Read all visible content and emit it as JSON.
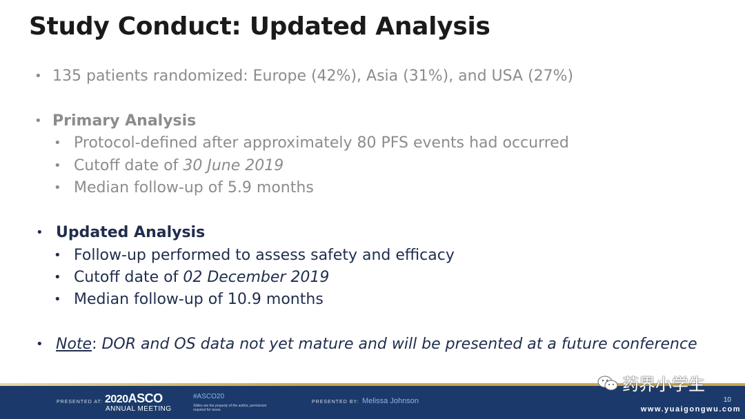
{
  "slide": {
    "title": "Study Conduct: Updated Analysis",
    "bullet_glyph": "•",
    "bullets": {
      "patients": "135 patients randomized: Europe (42%), Asia (31%), and USA (27%)",
      "primary": {
        "heading": "Primary Analysis",
        "protocol": "Protocol-defined after approximately 80 PFS events had occurred",
        "cutoff_prefix": "Cutoff date of ",
        "cutoff_date": "30 June 2019",
        "followup": "Median follow-up of 5.9 months"
      },
      "updated": {
        "heading": "Updated Analysis",
        "followup_performed": "Follow-up performed to assess safety and efficacy",
        "cutoff_prefix": "Cutoff date of ",
        "cutoff_date": "02 December 2019",
        "followup": "Median follow-up of 10.9 months"
      },
      "note": {
        "label": "Note",
        "sep": ": ",
        "text": "DOR and OS data not yet mature and will be presented at a future conference"
      }
    }
  },
  "footer": {
    "presented_at": "PRESENTED AT:",
    "asco_year": "2020",
    "asco_name": "ASCO",
    "asco_sub": "ANNUAL MEETING",
    "hashtag": "#ASCO20",
    "disclaimer": "Slides are the property of the author, permission required for reuse.",
    "presented_by": "PRESENTED BY:",
    "presenter": "Melissa Johnson",
    "page": "10"
  },
  "watermark": {
    "text": "药界小学生",
    "url": "www.yuaigongwu.com"
  },
  "colors": {
    "footer_bg": "#1b3a6b",
    "gold_rule": "#c9a64a",
    "active_text": "#1f2d4d",
    "muted_text": "#8c8c8c"
  }
}
